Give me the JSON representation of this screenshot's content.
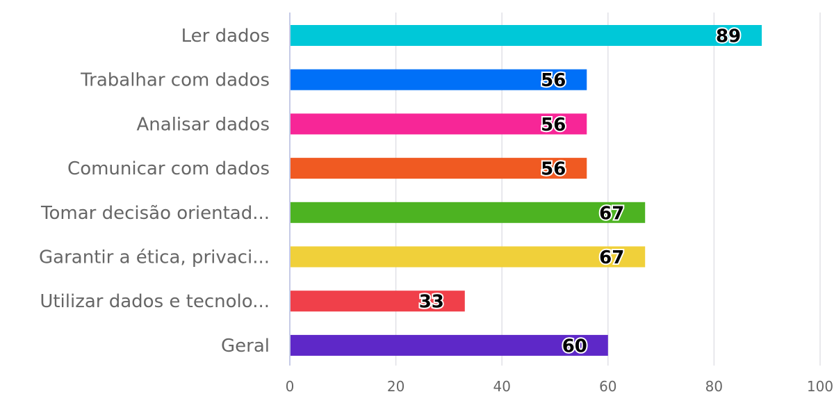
{
  "chart_data": {
    "type": "bar",
    "orientation": "horizontal",
    "categories": [
      "Ler dados",
      "Trabalhar com dados",
      "Analisar dados",
      "Comunicar com dados",
      "Tomar decisão orientad...",
      "Garantir a ética, privaci...",
      "Utilizar dados e tecnolo...",
      "Geral"
    ],
    "values": [
      89,
      56,
      56,
      56,
      67,
      67,
      33,
      60
    ],
    "colors": [
      "#00c8d8",
      "#0070f8",
      "#f72697",
      "#f05a22",
      "#4db322",
      "#f0d03a",
      "#f0404a",
      "#5e28c8"
    ],
    "xlim": [
      0,
      100
    ],
    "xticks": [
      0,
      20,
      40,
      60,
      80,
      100
    ],
    "grid": true,
    "legend": "none"
  }
}
